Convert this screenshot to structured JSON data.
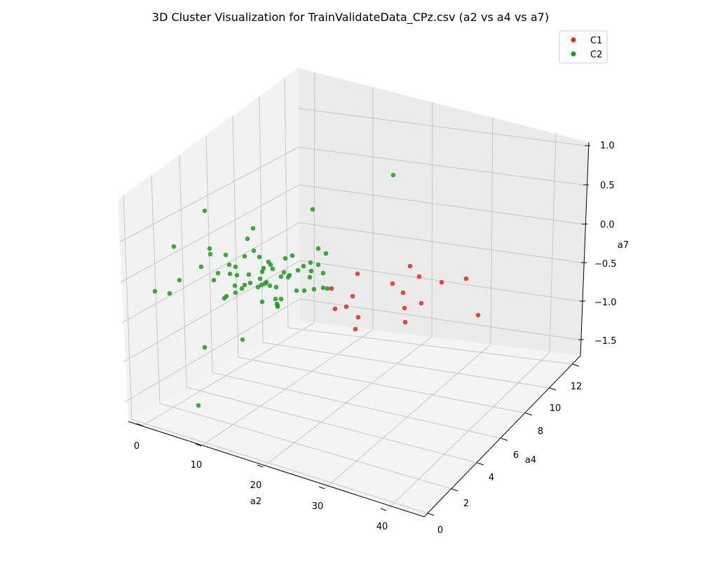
{
  "chart_data": {
    "type": "scatter",
    "title": "3D Cluster Visualization for TrainValidateData_CPz.csv (a2 vs a4 vs a7)",
    "xlabel": "a2",
    "ylabel": "a4",
    "zlabel": "a7",
    "xticks": [
      "0",
      "10",
      "20",
      "30",
      "40"
    ],
    "yticks": [
      "0",
      "2",
      "4",
      "6",
      "8",
      "10",
      "12"
    ],
    "zticks": [
      "1.0",
      "0.5",
      "0.0",
      "−0.5",
      "−1.0",
      "−1.5"
    ],
    "legend_position": "top-right",
    "series": [
      {
        "name": "C1",
        "color": "#e8262a",
        "points": [
          [
            494,
            438
          ],
          [
            503,
            423
          ],
          [
            601,
            433
          ],
          [
            560,
            405
          ],
          [
            598,
            395
          ],
          [
            585,
            380
          ],
          [
            630,
            403
          ],
          [
            665,
            398
          ],
          [
            682,
            450
          ],
          [
            473,
            412
          ],
          [
            478,
            441
          ],
          [
            511,
            453
          ],
          [
            507,
            470
          ],
          [
            577,
            440
          ],
          [
            578,
            460
          ],
          [
            575,
            418
          ],
          [
            510,
            391
          ]
        ]
      },
      {
        "name": "C2",
        "color": "#1f9a1f",
        "points": [
          [
            561,
            250
          ],
          [
            446,
            299
          ],
          [
            292,
            301
          ],
          [
            361,
            326
          ],
          [
            353,
            341
          ],
          [
            248,
            352
          ],
          [
            299,
            355
          ],
          [
            300,
            363
          ],
          [
            322,
            364
          ],
          [
            362,
            358
          ],
          [
            370,
            367
          ],
          [
            349,
            366
          ],
          [
            454,
            355
          ],
          [
            465,
            362
          ],
          [
            417,
            365
          ],
          [
            407,
            369
          ],
          [
            383,
            374
          ],
          [
            327,
            378
          ],
          [
            336,
            381
          ],
          [
            386,
            378
          ],
          [
            454,
            378
          ],
          [
            443,
            375
          ],
          [
            287,
            381
          ],
          [
            376,
            383
          ],
          [
            374,
            388
          ],
          [
            433,
            380
          ],
          [
            311,
            390
          ],
          [
            328,
            391
          ],
          [
            338,
            393
          ],
          [
            355,
            392
          ],
          [
            371,
            398
          ],
          [
            389,
            384
          ],
          [
            405,
            389
          ],
          [
            413,
            393
          ],
          [
            444,
            387
          ],
          [
            461,
            390
          ],
          [
            442,
            396
          ],
          [
            411,
            396
          ],
          [
            425,
            386
          ],
          [
            401,
            395
          ],
          [
            357,
            404
          ],
          [
            380,
            403
          ],
          [
            385,
            408
          ],
          [
            368,
            410
          ],
          [
            349,
            407
          ],
          [
            335,
            408
          ],
          [
            345,
            412
          ],
          [
            305,
            400
          ],
          [
            256,
            400
          ],
          [
            221,
            416
          ],
          [
            242,
            419
          ],
          [
            336,
            418
          ],
          [
            323,
            423
          ],
          [
            320,
            426
          ],
          [
            373,
            407
          ],
          [
            394,
            410
          ],
          [
            378,
            405
          ],
          [
            393,
            427
          ],
          [
            401,
            427
          ],
          [
            374,
            431
          ],
          [
            395,
            434
          ],
          [
            396,
            438
          ],
          [
            396,
            436
          ],
          [
            423,
            415
          ],
          [
            434,
            415
          ],
          [
            448,
            413
          ],
          [
            461,
            411
          ],
          [
            467,
            412
          ],
          [
            346,
            485
          ],
          [
            292,
            496
          ],
          [
            283,
            579
          ]
        ]
      }
    ]
  }
}
